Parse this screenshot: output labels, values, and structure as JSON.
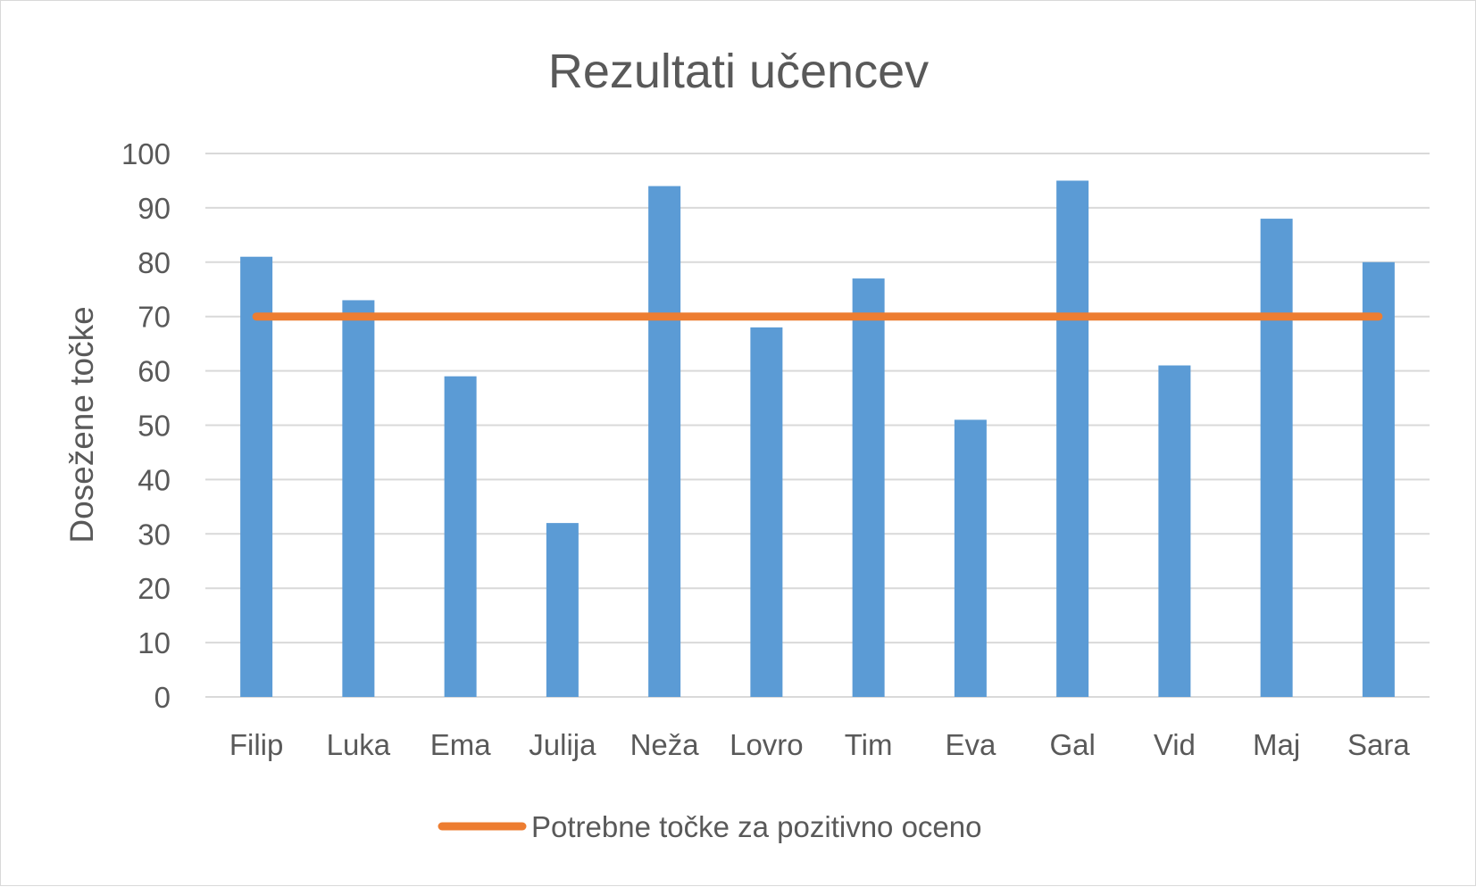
{
  "chart_data": {
    "type": "bar",
    "title": "Rezultati učencev",
    "xlabel": "",
    "ylabel": "Dosežene točke",
    "categories": [
      "Filip",
      "Luka",
      "Ema",
      "Julija",
      "Neža",
      "Lovro",
      "Tim",
      "Eva",
      "Gal",
      "Vid",
      "Maj",
      "Sara"
    ],
    "series": [
      {
        "kind": "bar",
        "values": [
          81,
          73,
          59,
          32,
          94,
          68,
          77,
          51,
          95,
          61,
          88,
          80
        ],
        "color": "#5b9bd5"
      },
      {
        "kind": "line",
        "name": "Potrebne točke za pozitivno oceno",
        "values": [
          70,
          70,
          70,
          70,
          70,
          70,
          70,
          70,
          70,
          70,
          70,
          70
        ],
        "color": "#ed7d31"
      }
    ],
    "ylim": [
      0,
      100
    ],
    "yticks": [
      "0",
      "10",
      "20",
      "30",
      "40",
      "50",
      "60",
      "70",
      "80",
      "90",
      "100"
    ],
    "grid": true,
    "gridColor": "#d9d9d9",
    "legend": "bottom"
  }
}
